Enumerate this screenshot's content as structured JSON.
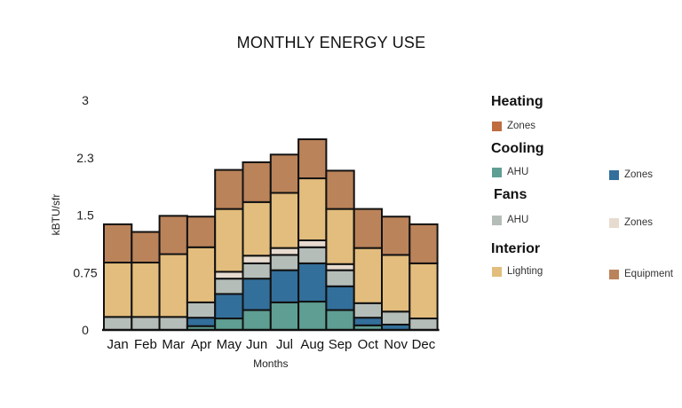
{
  "chart_data": {
    "type": "bar",
    "stacked": true,
    "title": "MONTHLY ENERGY USE",
    "xlabel": "Months",
    "ylabel": "kBTU/sfr",
    "ylim": [
      0,
      3
    ],
    "yticks": [
      0,
      0.75,
      1.5,
      2.25,
      3
    ],
    "ytick_labels": [
      "0",
      "0.75",
      "1.5",
      "2.3",
      "3"
    ],
    "grid": false,
    "legend_position": "right",
    "categories": [
      "Jan",
      "Feb",
      "Mar",
      "Apr",
      "May",
      "Jun",
      "Jul",
      "Aug",
      "Sep",
      "Oct",
      "Nov",
      "Dec"
    ],
    "series": [
      {
        "group": "Cooling",
        "name": "AHU",
        "color": "#5f9e93",
        "values": [
          0,
          0,
          0,
          0.05,
          0.15,
          0.26,
          0.36,
          0.37,
          0.26,
          0.06,
          0,
          0
        ]
      },
      {
        "group": "Cooling",
        "name": "Zones",
        "color": "#336f9b",
        "values": [
          0,
          0,
          0,
          0.11,
          0.32,
          0.41,
          0.42,
          0.5,
          0.31,
          0.1,
          0.07,
          0
        ]
      },
      {
        "group": "Fans",
        "name": "AHU",
        "color": "#b5bdb9",
        "values": [
          0.17,
          0.17,
          0.17,
          0.2,
          0.2,
          0.2,
          0.2,
          0.21,
          0.21,
          0.19,
          0.17,
          0.15
        ]
      },
      {
        "group": "Fans",
        "name": "Zones",
        "color": "#e7dbcf",
        "values": [
          0,
          0,
          0,
          0,
          0.09,
          0.1,
          0.09,
          0.09,
          0.08,
          0,
          0,
          0
        ]
      },
      {
        "group": "Interior",
        "name": "Lighting",
        "color": "#e3bd7d",
        "values": [
          0.71,
          0.71,
          0.82,
          0.72,
          0.82,
          0.7,
          0.72,
          0.81,
          0.72,
          0.72,
          0.74,
          0.72
        ]
      },
      {
        "group": "Interior",
        "name": "Equipment",
        "color": "#bb835a",
        "values": [
          0.5,
          0.4,
          0.5,
          0.4,
          0.51,
          0.52,
          0.5,
          0.51,
          0.5,
          0.51,
          0.5,
          0.51
        ]
      },
      {
        "group": "Heating",
        "name": "Zones",
        "color": "#bf6c41",
        "values": [
          0,
          0,
          0,
          0,
          0,
          0,
          0,
          0,
          0,
          0,
          0,
          0
        ]
      }
    ],
    "legend": [
      {
        "heading": "Heating",
        "items": [
          {
            "label": "Zones",
            "color": "#bf6c41"
          }
        ]
      },
      {
        "heading": "Cooling",
        "items": [
          {
            "label": "AHU",
            "color": "#5f9e93"
          },
          {
            "label": "Zones",
            "color": "#336f9b"
          }
        ]
      },
      {
        "heading": "Fans",
        "items": [
          {
            "label": "AHU",
            "color": "#b5bdb9"
          },
          {
            "label": "Zones",
            "color": "#e7dbcf"
          }
        ]
      },
      {
        "heading": "Interior",
        "items": [
          {
            "label": "Lighting",
            "color": "#e3bd7d"
          },
          {
            "label": "Equipment",
            "color": "#bb835a"
          }
        ]
      }
    ]
  }
}
